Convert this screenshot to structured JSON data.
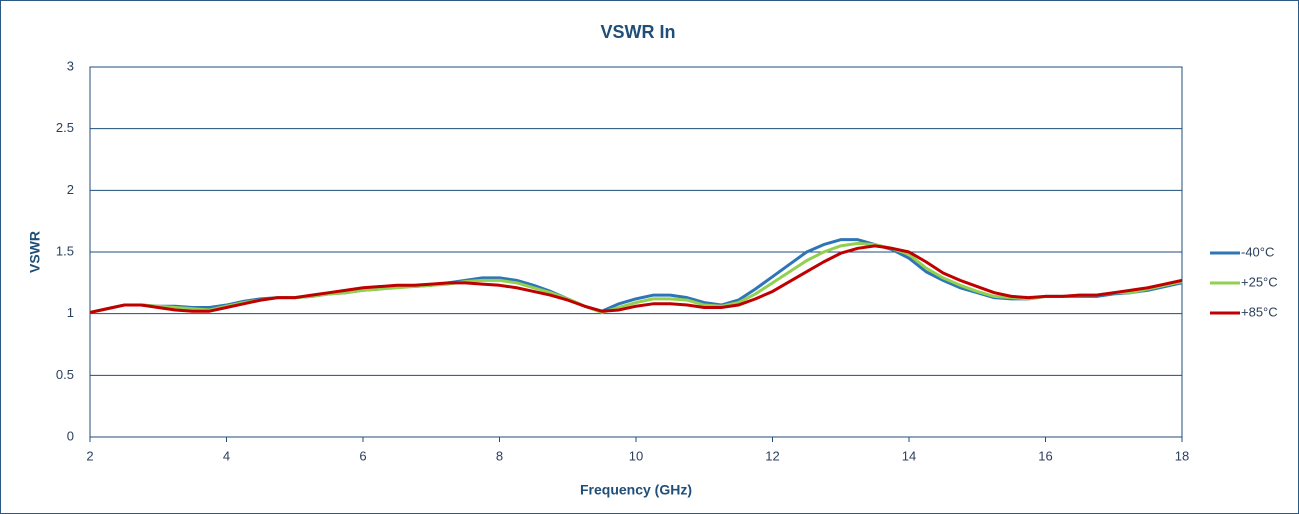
{
  "chart_data": {
    "type": "line",
    "title": "VSWR In",
    "x_label": "Frequency (GHz)",
    "y_label": "VSWR",
    "x": [
      2,
      2.25,
      2.5,
      2.75,
      3,
      3.25,
      3.5,
      3.75,
      4,
      4.25,
      4.5,
      4.75,
      5,
      5.25,
      5.5,
      5.75,
      6,
      6.25,
      6.5,
      6.75,
      7,
      7.25,
      7.5,
      7.75,
      8,
      8.25,
      8.5,
      8.75,
      9,
      9.25,
      9.5,
      9.75,
      10,
      10.25,
      10.5,
      10.75,
      11,
      11.25,
      11.5,
      11.75,
      12,
      12.25,
      12.5,
      12.75,
      13,
      13.25,
      13.5,
      13.75,
      14,
      14.25,
      14.5,
      14.75,
      15,
      15.25,
      15.5,
      15.75,
      16,
      16.25,
      16.5,
      16.75,
      17,
      17.25,
      17.5,
      17.75,
      18
    ],
    "series": [
      {
        "name": "-40°C",
        "color": "#2e75b6",
        "values": [
          1.01,
          1.04,
          1.07,
          1.07,
          1.06,
          1.06,
          1.05,
          1.05,
          1.07,
          1.1,
          1.12,
          1.13,
          1.13,
          1.14,
          1.16,
          1.17,
          1.19,
          1.2,
          1.22,
          1.22,
          1.23,
          1.25,
          1.27,
          1.29,
          1.29,
          1.27,
          1.23,
          1.18,
          1.12,
          1.06,
          1.02,
          1.08,
          1.12,
          1.15,
          1.15,
          1.13,
          1.09,
          1.07,
          1.11,
          1.2,
          1.3,
          1.4,
          1.5,
          1.56,
          1.6,
          1.6,
          1.56,
          1.52,
          1.45,
          1.34,
          1.27,
          1.21,
          1.17,
          1.13,
          1.12,
          1.12,
          1.14,
          1.14,
          1.14,
          1.14,
          1.16,
          1.17,
          1.19,
          1.22,
          1.25
        ]
      },
      {
        "name": "+25°C",
        "color": "#92d050",
        "values": [
          1.01,
          1.04,
          1.07,
          1.07,
          1.06,
          1.05,
          1.04,
          1.03,
          1.06,
          1.09,
          1.11,
          1.13,
          1.13,
          1.14,
          1.16,
          1.17,
          1.19,
          1.2,
          1.21,
          1.22,
          1.23,
          1.24,
          1.26,
          1.27,
          1.27,
          1.25,
          1.21,
          1.17,
          1.12,
          1.06,
          1.01,
          1.05,
          1.09,
          1.12,
          1.12,
          1.11,
          1.07,
          1.06,
          1.09,
          1.16,
          1.25,
          1.34,
          1.43,
          1.5,
          1.55,
          1.57,
          1.56,
          1.53,
          1.48,
          1.37,
          1.29,
          1.23,
          1.18,
          1.14,
          1.13,
          1.12,
          1.14,
          1.14,
          1.15,
          1.15,
          1.17,
          1.17,
          1.2,
          1.23,
          1.26
        ]
      },
      {
        "name": "+85°C",
        "color": "#c00000",
        "values": [
          1.01,
          1.04,
          1.07,
          1.07,
          1.05,
          1.03,
          1.02,
          1.02,
          1.05,
          1.08,
          1.11,
          1.13,
          1.13,
          1.15,
          1.17,
          1.19,
          1.21,
          1.22,
          1.23,
          1.23,
          1.24,
          1.25,
          1.25,
          1.24,
          1.23,
          1.21,
          1.18,
          1.15,
          1.11,
          1.06,
          1.02,
          1.03,
          1.06,
          1.08,
          1.08,
          1.07,
          1.05,
          1.05,
          1.07,
          1.12,
          1.18,
          1.26,
          1.34,
          1.42,
          1.49,
          1.53,
          1.55,
          1.53,
          1.5,
          1.42,
          1.33,
          1.27,
          1.22,
          1.17,
          1.14,
          1.13,
          1.14,
          1.14,
          1.15,
          1.15,
          1.17,
          1.19,
          1.21,
          1.24,
          1.27
        ]
      }
    ],
    "xlim": [
      2,
      18
    ],
    "xticks": [
      2,
      4,
      6,
      8,
      10,
      12,
      14,
      16,
      18
    ],
    "ylim": [
      0,
      3
    ],
    "yticks": [
      0,
      0.5,
      1,
      1.5,
      2,
      2.5,
      3
    ],
    "grid": true,
    "legend": "right"
  }
}
